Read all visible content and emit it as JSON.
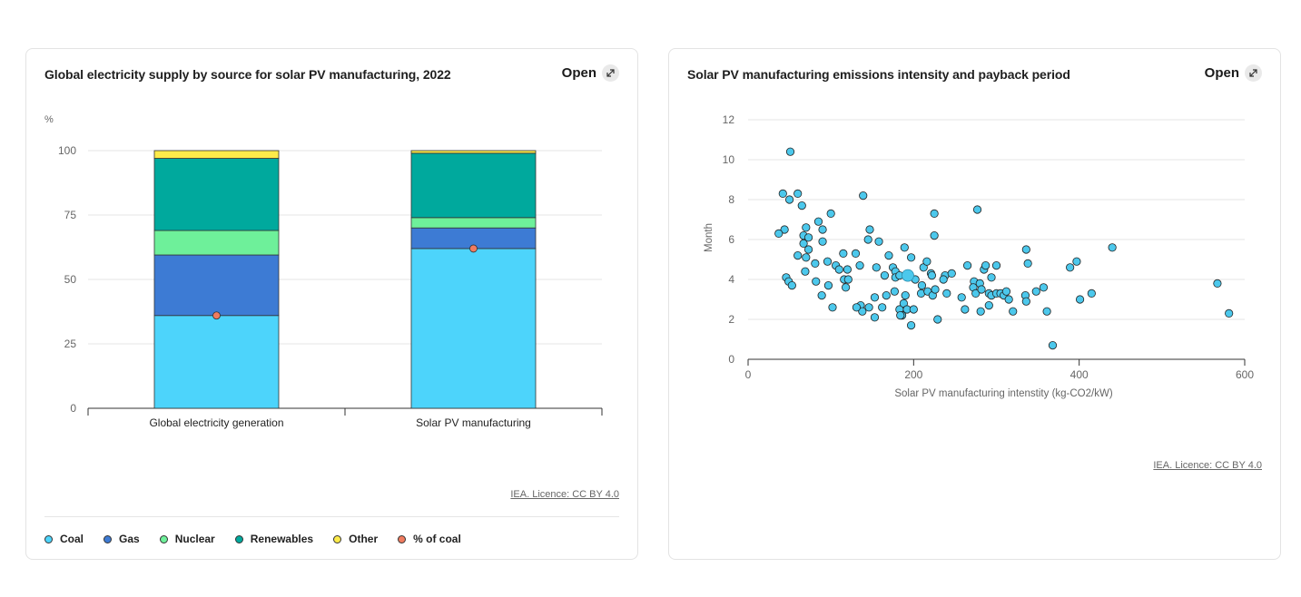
{
  "open_label": "Open",
  "licence": "IEA. Licence: CC BY 4.0",
  "left_chart": {
    "title": "Global electricity supply by source for solar PV manufacturing, 2022",
    "legend": [
      {
        "label": "Coal",
        "color": "#4dd4fb"
      },
      {
        "label": "Gas",
        "color": "#3d7bd4"
      },
      {
        "label": "Nuclear",
        "color": "#6ef09a"
      },
      {
        "label": "Renewables",
        "color": "#00a99d"
      },
      {
        "label": "Other",
        "color": "#fdeb4a"
      },
      {
        "label": "% of coal",
        "color": "#f07b5f"
      }
    ]
  },
  "right_chart": {
    "title": "Solar PV manufacturing emissions intensity and payback period"
  },
  "chart_data": [
    {
      "type": "bar",
      "stacked": true,
      "title": "Global electricity supply by source for solar PV manufacturing, 2022",
      "ylabel": "%",
      "xlabel": "",
      "ylim": [
        0,
        100
      ],
      "yticks": [
        0,
        25,
        50,
        75,
        100
      ],
      "grid": true,
      "legend_position": "bottom",
      "categories": [
        "Global electricity generation",
        "Solar PV manufacturing"
      ],
      "series": [
        {
          "name": "Coal",
          "color": "#4dd4fb",
          "values": [
            36,
            62
          ]
        },
        {
          "name": "Gas",
          "color": "#3d7bd4",
          "values": [
            23.5,
            8
          ]
        },
        {
          "name": "Nuclear",
          "color": "#6ef09a",
          "values": [
            9.5,
            4
          ]
        },
        {
          "name": "Renewables",
          "color": "#00a99d",
          "values": [
            28,
            25
          ]
        },
        {
          "name": "Other",
          "color": "#fdeb4a",
          "values": [
            3,
            1
          ]
        }
      ],
      "markers": {
        "name": "% of coal",
        "color": "#f07b5f",
        "values": [
          36,
          62
        ]
      }
    },
    {
      "type": "scatter",
      "title": "Solar PV manufacturing emissions intensity and payback period",
      "xlabel": "Solar PV manufacturing intenstity (kg-CO2/kW)",
      "ylabel": "Month",
      "xlim": [
        0,
        600
      ],
      "ylim": [
        0,
        12
      ],
      "xticks": [
        0,
        200,
        400,
        600
      ],
      "yticks": [
        0,
        2,
        4,
        6,
        8,
        10,
        12
      ],
      "grid": true,
      "point_color": "#4cc8ec",
      "highlight": {
        "x": 193,
        "y": 4.2
      },
      "points": [
        [
          51,
          10.4
        ],
        [
          42,
          8.3
        ],
        [
          60,
          8.3
        ],
        [
          50,
          8
        ],
        [
          139,
          8.2
        ],
        [
          277,
          7.5
        ],
        [
          65,
          7.7
        ],
        [
          100,
          7.3
        ],
        [
          225,
          7.3
        ],
        [
          44,
          6.5
        ],
        [
          37,
          6.3
        ],
        [
          70,
          6.6
        ],
        [
          67,
          6.2
        ],
        [
          73,
          6.1
        ],
        [
          85,
          6.9
        ],
        [
          90,
          6.5
        ],
        [
          147,
          6.5
        ],
        [
          225,
          6.2
        ],
        [
          67,
          5.8
        ],
        [
          73,
          5.5
        ],
        [
          90,
          5.9
        ],
        [
          145,
          6
        ],
        [
          158,
          5.9
        ],
        [
          189,
          5.6
        ],
        [
          336,
          5.5
        ],
        [
          440,
          5.6
        ],
        [
          60,
          5.2
        ],
        [
          70,
          5.1
        ],
        [
          115,
          5.3
        ],
        [
          130,
          5.3
        ],
        [
          170,
          5.2
        ],
        [
          197,
          5.1
        ],
        [
          81,
          4.8
        ],
        [
          96,
          4.9
        ],
        [
          106,
          4.7
        ],
        [
          110,
          4.5
        ],
        [
          120,
          4.5
        ],
        [
          135,
          4.7
        ],
        [
          155,
          4.6
        ],
        [
          175,
          4.6
        ],
        [
          178,
          4.4
        ],
        [
          212,
          4.6
        ],
        [
          216,
          4.9
        ],
        [
          221,
          4.3
        ],
        [
          238,
          4.2
        ],
        [
          246,
          4.3
        ],
        [
          265,
          4.7
        ],
        [
          285,
          4.5
        ],
        [
          287,
          4.7
        ],
        [
          300,
          4.7
        ],
        [
          338,
          4.8
        ],
        [
          389,
          4.6
        ],
        [
          397,
          4.9
        ],
        [
          46,
          4.1
        ],
        [
          49,
          3.9
        ],
        [
          53,
          3.7
        ],
        [
          82,
          3.9
        ],
        [
          97,
          3.7
        ],
        [
          116,
          4
        ],
        [
          121,
          4
        ],
        [
          165,
          4.2
        ],
        [
          178,
          4.1
        ],
        [
          183,
          4.2
        ],
        [
          202,
          4
        ],
        [
          210,
          3.7
        ],
        [
          222,
          4.2
        ],
        [
          236,
          4.0
        ],
        [
          273,
          3.9
        ],
        [
          280,
          3.8
        ],
        [
          294,
          4.1
        ],
        [
          69,
          4.4
        ],
        [
          89,
          3.2
        ],
        [
          102,
          2.6
        ],
        [
          118,
          3.6
        ],
        [
          136,
          2.7
        ],
        [
          146,
          2.6
        ],
        [
          153,
          3.1
        ],
        [
          162,
          2.6
        ],
        [
          167,
          3.2
        ],
        [
          177,
          3.4
        ],
        [
          183,
          2.5
        ],
        [
          188,
          2.8
        ],
        [
          190,
          3.2
        ],
        [
          192,
          2.5
        ],
        [
          200,
          2.5
        ],
        [
          209,
          3.3
        ],
        [
          217,
          3.4
        ],
        [
          223,
          3.2
        ],
        [
          226,
          3.5
        ],
        [
          240,
          3.3
        ],
        [
          258,
          3.1
        ],
        [
          262,
          2.5
        ],
        [
          272,
          3.6
        ],
        [
          275,
          3.3
        ],
        [
          282,
          3.5
        ],
        [
          291,
          3.3
        ],
        [
          294,
          3.2
        ],
        [
          300,
          3.3
        ],
        [
          305,
          3.3
        ],
        [
          309,
          3.2
        ],
        [
          312,
          3.4
        ],
        [
          315,
          3.0
        ],
        [
          335,
          3.2
        ],
        [
          336,
          2.9
        ],
        [
          348,
          3.4
        ],
        [
          357,
          3.6
        ],
        [
          401,
          3.0
        ],
        [
          415,
          3.3
        ],
        [
          567,
          3.8
        ],
        [
          581,
          2.3
        ],
        [
          138,
          2.4
        ],
        [
          153,
          2.1
        ],
        [
          186,
          2.2
        ],
        [
          197,
          1.7
        ],
        [
          229,
          2.0
        ],
        [
          291,
          2.7
        ],
        [
          281,
          2.4
        ],
        [
          320,
          2.4
        ],
        [
          361,
          2.4
        ],
        [
          368,
          0.7
        ],
        [
          131,
          2.6
        ],
        [
          184,
          2.2
        ]
      ]
    }
  ]
}
